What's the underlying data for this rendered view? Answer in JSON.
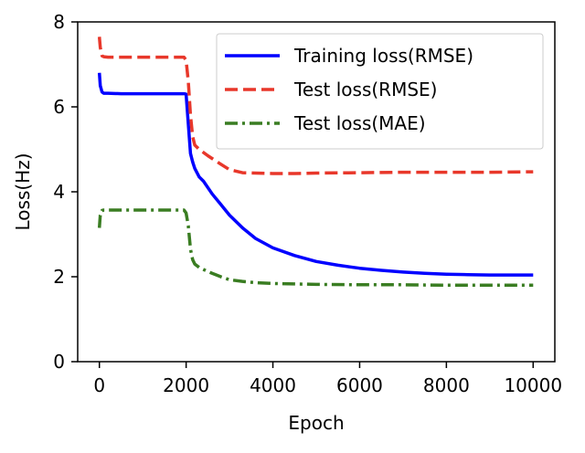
{
  "chart_data": {
    "type": "line",
    "title": "",
    "xlabel": "Epoch",
    "ylabel": "Loss(Hz)",
    "xlim": [
      -500,
      10500
    ],
    "ylim": [
      0,
      8
    ],
    "xticks": [
      0,
      2000,
      4000,
      6000,
      8000,
      10000
    ],
    "yticks": [
      0,
      2,
      4,
      6,
      8
    ],
    "grid": false,
    "legend_position": "top-right",
    "series": [
      {
        "name": "Training loss(RMSE)",
        "color": "#0000ff",
        "style": "solid",
        "x": [
          0,
          20,
          60,
          100,
          200,
          500,
          1000,
          1500,
          1950,
          2000,
          2050,
          2100,
          2150,
          2200,
          2300,
          2400,
          2600,
          2800,
          3000,
          3300,
          3600,
          4000,
          4500,
          5000,
          5500,
          6000,
          6500,
          7000,
          7500,
          8000,
          8500,
          9000,
          9500,
          10000
        ],
        "y": [
          6.8,
          6.5,
          6.35,
          6.32,
          6.32,
          6.31,
          6.31,
          6.31,
          6.31,
          6.3,
          5.6,
          4.9,
          4.7,
          4.55,
          4.35,
          4.25,
          3.95,
          3.7,
          3.45,
          3.15,
          2.9,
          2.68,
          2.5,
          2.36,
          2.27,
          2.2,
          2.15,
          2.11,
          2.08,
          2.06,
          2.05,
          2.04,
          2.04,
          2.04
        ]
      },
      {
        "name": "Test loss(RMSE)",
        "color": "#e8372a",
        "style": "dashed",
        "x": [
          0,
          20,
          60,
          100,
          200,
          500,
          1000,
          1500,
          1950,
          2000,
          2050,
          2100,
          2150,
          2200,
          2300,
          2500,
          2800,
          3000,
          3300,
          3600,
          4000,
          4500,
          5000,
          6000,
          7000,
          8000,
          9000,
          10000
        ],
        "y": [
          7.65,
          7.4,
          7.2,
          7.18,
          7.17,
          7.17,
          7.17,
          7.17,
          7.17,
          7.1,
          6.6,
          5.8,
          5.3,
          5.1,
          5.0,
          4.85,
          4.65,
          4.52,
          4.45,
          4.44,
          4.43,
          4.43,
          4.44,
          4.45,
          4.46,
          4.46,
          4.46,
          4.47
        ]
      },
      {
        "name": "Test loss(MAE)",
        "color": "#3a7d22",
        "style": "dashdot",
        "x": [
          0,
          20,
          60,
          100,
          200,
          500,
          1000,
          1500,
          1950,
          2000,
          2050,
          2100,
          2150,
          2200,
          2300,
          2500,
          2800,
          3000,
          3300,
          3600,
          4000,
          4500,
          5000,
          6000,
          7000,
          8000,
          9000,
          10000
        ],
        "y": [
          3.15,
          3.45,
          3.56,
          3.57,
          3.57,
          3.57,
          3.57,
          3.57,
          3.57,
          3.5,
          3.2,
          2.65,
          2.4,
          2.3,
          2.22,
          2.12,
          2.0,
          1.93,
          1.89,
          1.86,
          1.84,
          1.83,
          1.82,
          1.81,
          1.81,
          1.8,
          1.8,
          1.8
        ]
      }
    ]
  }
}
